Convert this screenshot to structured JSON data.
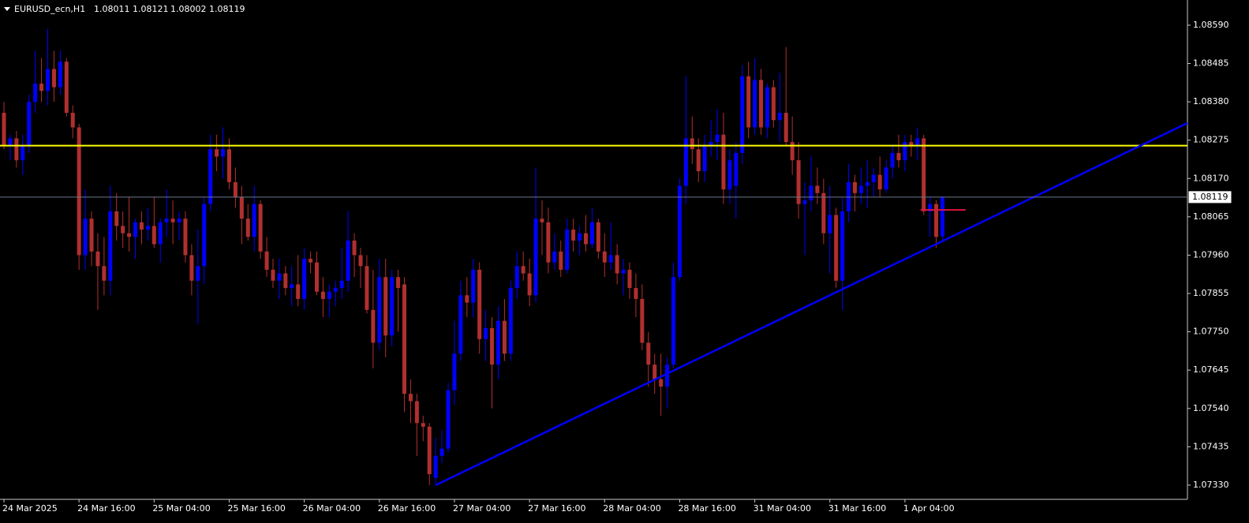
{
  "chart_data": {
    "type": "candlestick",
    "symbol": "EURUSD_ecn,H1",
    "categories": [
      "24 Mar 2025",
      null,
      null,
      null,
      null,
      null,
      null,
      null,
      null,
      null,
      null,
      null,
      "24 Mar 16:00",
      null,
      null,
      null,
      null,
      null,
      null,
      null,
      null,
      null,
      null,
      null,
      "25 Mar 04:00",
      null,
      null,
      null,
      null,
      null,
      null,
      null,
      null,
      null,
      null,
      null,
      "25 Mar 16:00",
      null,
      null,
      null,
      null,
      null,
      null,
      null,
      null,
      null,
      null,
      null,
      "26 Mar 04:00",
      null,
      null,
      null,
      null,
      null,
      null,
      null,
      null,
      null,
      null,
      null,
      "26 Mar 16:00",
      null,
      null,
      null,
      null,
      null,
      null,
      null,
      null,
      null,
      null,
      null,
      "27 Mar 04:00",
      null,
      null,
      null,
      null,
      null,
      null,
      null,
      null,
      null,
      null,
      null,
      "27 Mar 16:00",
      null,
      null,
      null,
      null,
      null,
      null,
      null,
      null,
      null,
      null,
      null,
      "28 Mar 04:00",
      null,
      null,
      null,
      null,
      null,
      null,
      null,
      null,
      null,
      null,
      null,
      "28 Mar 16:00",
      null,
      null,
      null,
      null,
      null,
      null,
      null,
      null,
      null,
      null,
      null,
      "31 Mar 04:00",
      null,
      null,
      null,
      null,
      null,
      null,
      null,
      null,
      null,
      null,
      null,
      "31 Mar 16:00",
      null,
      null,
      null,
      null,
      null,
      null,
      null,
      null,
      null,
      null,
      null,
      "1 Apr 04:00",
      null,
      null,
      null,
      null,
      null,
      null
    ],
    "open": [
      1.0835,
      1.0826,
      1.0828,
      1.0822,
      1.0826,
      1.0838,
      1.0843,
      1.0841,
      1.0847,
      1.0842,
      1.0849,
      1.0835,
      1.0831,
      1.0796,
      1.0806,
      1.0797,
      1.0793,
      1.0789,
      1.0808,
      1.0804,
      1.0802,
      1.0801,
      1.0805,
      1.0803,
      1.0804,
      1.0799,
      1.0805,
      1.0806,
      1.0805,
      1.0806,
      1.0796,
      1.0789,
      1.0793,
      1.081,
      1.0825,
      1.0823,
      1.0825,
      1.0816,
      1.0812,
      1.0806,
      1.0801,
      1.081,
      1.0797,
      1.0792,
      1.0789,
      1.0791,
      1.0787,
      1.0788,
      1.0784,
      1.0795,
      1.0794,
      1.0786,
      1.0784,
      1.0786,
      1.0787,
      1.0789,
      1.08,
      1.0796,
      1.0793,
      1.0781,
      1.0772,
      1.079,
      1.0774,
      1.079,
      1.0788,
      1.0758,
      1.0756,
      1.075,
      1.0749,
      1.0735,
      1.0741,
      1.0743,
      1.0759,
      1.0769,
      1.0785,
      1.0783,
      1.0792,
      1.0773,
      1.0776,
      1.0766,
      1.0778,
      1.0769,
      1.0787,
      1.0793,
      1.0791,
      1.0785,
      1.0806,
      1.0805,
      1.0794,
      1.0797,
      1.0792,
      1.0803,
      1.08,
      1.0802,
      1.0799,
      1.0805,
      1.0797,
      1.0794,
      1.0796,
      1.0791,
      1.0792,
      1.0787,
      1.0784,
      1.0772,
      1.0766,
      1.0762,
      1.076,
      1.0766,
      1.079,
      1.0815,
      1.0828,
      1.0825,
      1.0819,
      1.0826,
      1.0827,
      1.0829,
      1.0814,
      1.0815,
      1.0824,
      1.0845,
      1.0831,
      1.0844,
      1.0831,
      1.0842,
      1.0833,
      1.0835,
      1.0827,
      1.0822,
      1.081,
      1.0811,
      1.0815,
      1.0813,
      1.0802,
      1.0807,
      1.0789,
      1.0808,
      1.0816,
      1.0813,
      1.0815,
      1.0816,
      1.0818,
      1.0814,
      1.082,
      1.0824,
      1.0822,
      1.0827,
      1.0826,
      1.0828,
      1.0808,
      1.081,
      1.08011
    ],
    "high": [
      1.0838,
      1.0829,
      1.083,
      1.0829,
      1.084,
      1.0852,
      1.085,
      1.0858,
      1.0852,
      1.0852,
      1.085,
      1.0837,
      1.0832,
      1.0814,
      1.0808,
      1.0802,
      1.0801,
      1.0815,
      1.0813,
      1.0808,
      1.0812,
      1.0806,
      1.0808,
      1.0809,
      1.0812,
      1.0806,
      1.0814,
      1.0811,
      1.0808,
      1.0808,
      1.0799,
      1.0803,
      1.0812,
      1.0829,
      1.0829,
      1.0831,
      1.0828,
      1.082,
      1.0815,
      1.081,
      1.0815,
      1.0811,
      1.0801,
      1.0795,
      1.0795,
      1.0793,
      1.0793,
      1.0796,
      1.0798,
      1.0797,
      1.0797,
      1.079,
      1.0788,
      1.0789,
      1.0798,
      1.0808,
      1.0802,
      1.0798,
      1.0796,
      1.0792,
      1.0795,
      1.0795,
      1.0792,
      1.0792,
      1.079,
      1.0762,
      1.0758,
      1.0752,
      1.075,
      1.0746,
      1.0748,
      1.0761,
      1.0778,
      1.0789,
      1.079,
      1.0795,
      1.0794,
      1.0781,
      1.0779,
      1.0782,
      1.0784,
      1.0789,
      1.0797,
      1.0797,
      1.0795,
      1.082,
      1.0811,
      1.0809,
      1.0802,
      1.08,
      1.0806,
      1.0806,
      1.0804,
      1.0807,
      1.0809,
      1.0806,
      1.0802,
      1.0805,
      1.0799,
      1.0795,
      1.0794,
      1.0791,
      1.0788,
      1.0775,
      1.0769,
      1.0769,
      1.0768,
      1.0794,
      1.0817,
      1.0845,
      1.0834,
      1.0828,
      1.0829,
      1.0833,
      1.0836,
      1.0835,
      1.0825,
      1.0827,
      1.0848,
      1.0849,
      1.085,
      1.0847,
      1.0843,
      1.0844,
      1.0846,
      1.0853,
      1.0834,
      1.0827,
      1.0816,
      1.0823,
      1.082,
      1.0817,
      1.0815,
      1.0809,
      1.0812,
      1.0821,
      1.0818,
      1.082,
      1.0822,
      1.082,
      1.0823,
      1.0822,
      1.0826,
      1.0829,
      1.0829,
      1.0829,
      1.0831,
      1.0829,
      1.0812,
      1.0811,
      1.08121
    ],
    "low": [
      1.0825,
      1.0822,
      1.082,
      1.0818,
      1.0824,
      1.0835,
      1.0838,
      1.0837,
      1.0838,
      1.084,
      1.0834,
      1.0828,
      1.0792,
      1.0792,
      1.0793,
      1.0781,
      1.0785,
      1.0785,
      1.08,
      1.0798,
      1.0797,
      1.0795,
      1.0799,
      1.08,
      1.0798,
      1.0794,
      1.0801,
      1.0799,
      1.08,
      1.0794,
      1.0785,
      1.0777,
      1.0788,
      1.0808,
      1.0819,
      1.0817,
      1.0814,
      1.0809,
      1.0799,
      1.08,
      1.0797,
      1.0795,
      1.079,
      1.0787,
      1.0784,
      1.0785,
      1.0782,
      1.0782,
      1.0781,
      1.0791,
      1.0785,
      1.0779,
      1.0779,
      1.0782,
      1.0784,
      1.0786,
      1.079,
      1.0787,
      1.078,
      1.0765,
      1.077,
      1.0768,
      1.0771,
      1.0775,
      1.0753,
      1.075,
      1.0741,
      1.0745,
      1.0733,
      1.0733,
      1.0739,
      1.0742,
      1.0755,
      1.0767,
      1.0779,
      1.0779,
      1.0769,
      1.0767,
      1.0754,
      1.0762,
      1.0767,
      1.0767,
      1.0784,
      1.0789,
      1.0782,
      1.0783,
      1.0796,
      1.0791,
      1.0792,
      1.079,
      1.0791,
      1.0797,
      1.0796,
      1.0797,
      1.0798,
      1.0795,
      1.079,
      1.0792,
      1.0788,
      1.0785,
      1.0784,
      1.0779,
      1.077,
      1.076,
      1.0758,
      1.0752,
      1.0754,
      1.0765,
      1.0789,
      1.081,
      1.0821,
      1.0816,
      1.0816,
      1.0823,
      1.0822,
      1.081,
      1.081,
      1.0806,
      1.0821,
      1.0828,
      1.0829,
      1.0829,
      1.0828,
      1.0831,
      1.0827,
      1.0826,
      1.0818,
      1.0806,
      1.0796,
      1.0808,
      1.081,
      1.0799,
      1.0791,
      1.0787,
      1.0781,
      1.0805,
      1.0808,
      1.081,
      1.0809,
      1.0812,
      1.0812,
      1.0813,
      1.0817,
      1.082,
      1.0819,
      1.0823,
      1.0822,
      1.0807,
      1.0801,
      1.0798,
      1.08002
    ],
    "close": [
      1.0826,
      1.0828,
      1.0822,
      1.0826,
      1.0838,
      1.0843,
      1.0841,
      1.0847,
      1.0842,
      1.0849,
      1.0835,
      1.0831,
      1.0796,
      1.0806,
      1.0797,
      1.0793,
      1.0789,
      1.0808,
      1.0804,
      1.0802,
      1.0801,
      1.0805,
      1.0803,
      1.0804,
      1.0799,
      1.0805,
      1.0806,
      1.0805,
      1.0806,
      1.0796,
      1.0789,
      1.0793,
      1.081,
      1.0825,
      1.0823,
      1.0825,
      1.0816,
      1.0812,
      1.0806,
      1.0801,
      1.081,
      1.0797,
      1.0792,
      1.0789,
      1.0791,
      1.0787,
      1.0788,
      1.0784,
      1.0795,
      1.0794,
      1.0786,
      1.0784,
      1.0786,
      1.0787,
      1.0789,
      1.08,
      1.0796,
      1.0793,
      1.0781,
      1.0772,
      1.079,
      1.0774,
      1.079,
      1.0787,
      1.0758,
      1.0756,
      1.075,
      1.0749,
      1.0736,
      1.0741,
      1.0743,
      1.0759,
      1.0769,
      1.0785,
      1.0783,
      1.0792,
      1.0773,
      1.0776,
      1.0766,
      1.0778,
      1.0769,
      1.0787,
      1.0793,
      1.0791,
      1.0785,
      1.0806,
      1.0805,
      1.0794,
      1.0797,
      1.0792,
      1.0803,
      1.08,
      1.0802,
      1.0799,
      1.0805,
      1.0797,
      1.0794,
      1.0796,
      1.0791,
      1.0792,
      1.0787,
      1.0784,
      1.0772,
      1.0766,
      1.0762,
      1.076,
      1.0766,
      1.079,
      1.0815,
      1.0828,
      1.0825,
      1.0819,
      1.0826,
      1.0827,
      1.0829,
      1.0814,
      1.0822,
      1.0824,
      1.0845,
      1.0831,
      1.0844,
      1.0831,
      1.0842,
      1.0833,
      1.0835,
      1.0827,
      1.0822,
      1.081,
      1.0811,
      1.0815,
      1.0813,
      1.0802,
      1.0807,
      1.0789,
      1.0808,
      1.0816,
      1.0813,
      1.0815,
      1.0816,
      1.0818,
      1.0814,
      1.082,
      1.0824,
      1.0822,
      1.0827,
      1.0826,
      1.0828,
      1.0808,
      1.081,
      1.0801,
      1.08119
    ],
    "up_color": "#0000ff",
    "down_color": "#b0302f",
    "ylim": [
      1.07291,
      1.08659
    ],
    "yticks": [
      {
        "value": 1.0733,
        "label": "1.07330"
      },
      {
        "value": 1.07435,
        "label": "1.07435"
      },
      {
        "value": 1.0754,
        "label": "1.07540"
      },
      {
        "value": 1.07645,
        "label": "1.07645"
      },
      {
        "value": 1.0775,
        "label": "1.07750"
      },
      {
        "value": 1.07855,
        "label": "1.07855"
      },
      {
        "value": 1.0796,
        "label": "1.07960"
      },
      {
        "value": 1.08065,
        "label": "1.08065"
      },
      {
        "value": 1.0817,
        "label": "1.08170"
      },
      {
        "value": 1.08275,
        "label": "1.08275"
      },
      {
        "value": 1.0838,
        "label": "1.08380"
      },
      {
        "value": 1.08485,
        "label": "1.08485"
      },
      {
        "value": 1.0859,
        "label": "1.08590"
      }
    ],
    "objects": [
      {
        "type": "hline",
        "price": 1.0826,
        "color": "#ffff00"
      },
      {
        "type": "trendline",
        "x": [
          69,
          120
        ],
        "prices": [
          1.0733,
          1.07751
        ],
        "color": "#0000ff"
      },
      {
        "type": "segment",
        "x": [
          146.5,
          153.7
        ],
        "price": 1.08084,
        "color": "#dc143c"
      }
    ]
  }
}
